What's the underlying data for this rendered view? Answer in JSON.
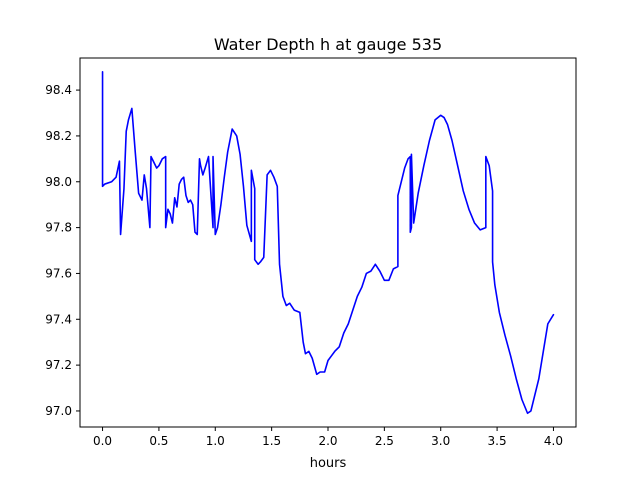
{
  "chart_data": {
    "type": "line",
    "title": "Water Depth h at gauge 535",
    "xlabel": "hours",
    "ylabel": "",
    "xlim": [
      -0.2,
      4.2
    ],
    "ylim": [
      96.93,
      98.54
    ],
    "xticks": [
      "0.0",
      "0.5",
      "1.0",
      "1.5",
      "2.0",
      "2.5",
      "3.0",
      "3.5",
      "4.0"
    ],
    "yticks": [
      "97.0",
      "97.2",
      "97.4",
      "97.6",
      "97.8",
      "98.0",
      "98.2",
      "98.4"
    ],
    "xtick_values": [
      0.0,
      0.5,
      1.0,
      1.5,
      2.0,
      2.5,
      3.0,
      3.5,
      4.0
    ],
    "ytick_values": [
      97.0,
      97.2,
      97.4,
      97.6,
      97.8,
      98.0,
      98.2,
      98.4
    ],
    "grid": false,
    "series": [
      {
        "color": "#0000ff",
        "x": [
          0.0,
          0.0,
          0.02,
          0.08,
          0.12,
          0.15,
          0.16,
          0.19,
          0.21,
          0.23,
          0.26,
          0.29,
          0.32,
          0.35,
          0.37,
          0.39,
          0.42,
          0.43,
          0.45,
          0.48,
          0.5,
          0.53,
          0.56,
          0.56,
          0.58,
          0.6,
          0.62,
          0.64,
          0.66,
          0.68,
          0.7,
          0.72,
          0.74,
          0.76,
          0.78,
          0.8,
          0.82,
          0.84,
          0.86,
          0.87,
          0.89,
          0.91,
          0.94,
          0.98,
          0.98,
          1.0,
          1.02,
          1.05,
          1.08,
          1.11,
          1.15,
          1.19,
          1.22,
          1.25,
          1.28,
          1.32,
          1.32,
          1.35,
          1.35,
          1.38,
          1.4,
          1.43,
          1.46,
          1.49,
          1.52,
          1.55,
          1.57,
          1.6,
          1.63,
          1.66,
          1.7,
          1.75,
          1.78,
          1.8,
          1.83,
          1.86,
          1.9,
          1.93,
          1.97,
          2.0,
          2.03,
          2.06,
          2.1,
          2.14,
          2.18,
          2.22,
          2.26,
          2.3,
          2.34,
          2.38,
          2.42,
          2.46,
          2.5,
          2.54,
          2.58,
          2.62,
          2.62,
          2.65,
          2.68,
          2.71,
          2.73,
          2.73,
          2.74,
          2.74,
          2.76,
          2.8,
          2.85,
          2.9,
          2.95,
          3.0,
          3.03,
          3.06,
          3.1,
          3.15,
          3.2,
          3.25,
          3.3,
          3.35,
          3.4,
          3.4,
          3.43,
          3.46,
          3.46,
          3.48,
          3.52,
          3.57,
          3.62,
          3.67,
          3.72,
          3.77,
          3.8,
          3.83,
          3.87,
          3.91,
          3.95,
          4.0
        ],
        "y": [
          98.48,
          97.98,
          97.99,
          98.0,
          98.02,
          98.09,
          97.77,
          97.97,
          98.22,
          98.27,
          98.32,
          98.13,
          97.95,
          97.92,
          98.03,
          97.97,
          97.8,
          98.11,
          98.09,
          98.06,
          98.07,
          98.1,
          98.11,
          97.8,
          97.88,
          97.86,
          97.82,
          97.93,
          97.89,
          97.99,
          98.01,
          98.02,
          97.94,
          97.91,
          97.92,
          97.9,
          97.78,
          97.77,
          98.1,
          98.07,
          98.03,
          98.06,
          98.11,
          97.8,
          98.11,
          97.77,
          97.8,
          97.9,
          98.02,
          98.13,
          98.23,
          98.2,
          98.12,
          97.98,
          97.81,
          97.74,
          98.05,
          97.97,
          97.66,
          97.64,
          97.65,
          97.67,
          98.03,
          98.05,
          98.02,
          97.98,
          97.64,
          97.5,
          97.46,
          97.47,
          97.44,
          97.43,
          97.3,
          97.25,
          97.26,
          97.23,
          97.16,
          97.17,
          97.17,
          97.22,
          97.24,
          97.26,
          97.28,
          97.34,
          97.38,
          97.44,
          97.5,
          97.54,
          97.6,
          97.61,
          97.64,
          97.61,
          97.57,
          97.57,
          97.62,
          97.63,
          97.94,
          98.0,
          98.06,
          98.1,
          98.11,
          97.78,
          97.8,
          98.12,
          97.82,
          97.95,
          98.07,
          98.18,
          98.27,
          98.29,
          98.28,
          98.25,
          98.18,
          98.07,
          97.96,
          97.88,
          97.82,
          97.79,
          97.8,
          98.11,
          98.07,
          97.96,
          97.65,
          97.55,
          97.43,
          97.33,
          97.24,
          97.14,
          97.05,
          96.99,
          97.0,
          97.06,
          97.14,
          97.26,
          97.38,
          97.42
        ]
      }
    ]
  }
}
